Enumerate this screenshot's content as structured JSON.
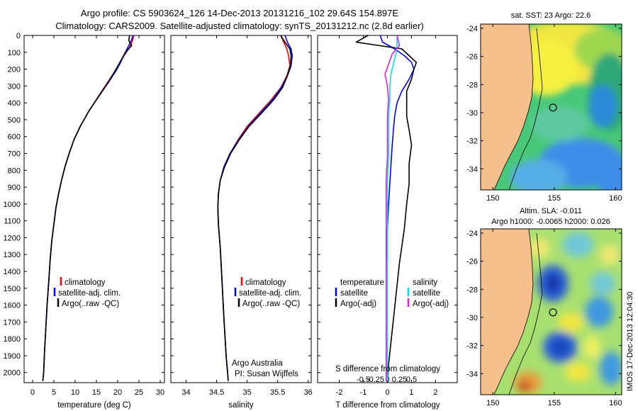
{
  "header": {
    "title_line1": "Argo profile: CS 5903624_126 14-Dec-2013 20131216_102 29.64S 154.897E",
    "title_line2": "Climatology: CARS2009. Satellite-adjusted climatology: synTS_20131212.nc (2.8d earlier)"
  },
  "colors": {
    "climatology": "#ff0000",
    "satellite": "#0000ff",
    "argo": "#000000",
    "s_satellite": "#00e5e5",
    "s_argo": "#e020e0",
    "land": "#f5c08c"
  },
  "chart_data": [
    {
      "id": "temperature",
      "type": "line",
      "xlabel": "temperature (deg C)",
      "xlim": [
        -2,
        31
      ],
      "xticks": [
        0,
        5,
        10,
        15,
        20,
        25,
        30
      ],
      "ylim": [
        2060,
        0
      ],
      "yticks": [
        0,
        100,
        200,
        300,
        400,
        500,
        600,
        700,
        800,
        900,
        1000,
        1100,
        1200,
        1300,
        1400,
        1500,
        1600,
        1700,
        1800,
        1900,
        2000
      ],
      "legend": [
        "climatology",
        "satellite-adj. clim.",
        "Argo(..raw -QC)"
      ],
      "series": [
        {
          "name": "climatology",
          "color": "#ff0000",
          "x": [
            23.8,
            23.5,
            23.0,
            22.3,
            21.5,
            20.6,
            19.4,
            17.6,
            15.5,
            13.2,
            11.2,
            9.7,
            8.6,
            7.6,
            6.8,
            6.1,
            5.5,
            5.0,
            4.5,
            4.1,
            3.8,
            3.4,
            3.1,
            2.8,
            2.6,
            2.4
          ],
          "depth": [
            0,
            30,
            60,
            90,
            120,
            160,
            210,
            280,
            360,
            450,
            540,
            620,
            700,
            780,
            860,
            940,
            1020,
            1120,
            1220,
            1340,
            1460,
            1600,
            1740,
            1880,
            2000,
            2050
          ]
        },
        {
          "name": "satellite-adj. clim.",
          "color": "#0000ff",
          "x": [
            23.6,
            23.2,
            22.6,
            22.0,
            21.4,
            20.7,
            19.6,
            17.8,
            15.6,
            13.2,
            11.2,
            9.7,
            8.6,
            7.6,
            6.8,
            6.1,
            5.5,
            5.0,
            4.5,
            4.1,
            3.8,
            3.4,
            3.1,
            2.8,
            2.6,
            2.4
          ],
          "depth": [
            0,
            30,
            60,
            90,
            120,
            160,
            210,
            280,
            360,
            450,
            540,
            620,
            700,
            780,
            860,
            940,
            1020,
            1120,
            1220,
            1340,
            1460,
            1600,
            1740,
            1880,
            2000,
            2050
          ]
        },
        {
          "name": "Argo(..raw -QC)",
          "color": "#000000",
          "x": [
            22.8,
            22.6,
            23.3,
            22.2,
            21.4,
            20.5,
            19.4,
            17.7,
            15.6,
            13.2,
            11.2,
            9.7,
            8.6,
            7.6,
            6.8,
            6.1,
            5.5,
            5.0,
            4.5,
            4.1,
            3.8,
            3.4,
            3.1,
            2.8,
            2.6,
            2.4
          ],
          "depth": [
            0,
            30,
            60,
            90,
            120,
            160,
            210,
            280,
            360,
            450,
            540,
            620,
            700,
            780,
            860,
            940,
            1020,
            1120,
            1220,
            1340,
            1460,
            1600,
            1740,
            1880,
            2000,
            2050
          ]
        }
      ]
    },
    {
      "id": "salinity",
      "type": "line",
      "xlabel": "salinity",
      "xlim": [
        33.75,
        36.05
      ],
      "xticks": [
        34,
        34.5,
        35,
        35.5,
        36
      ],
      "ylim": [
        2060,
        0
      ],
      "legend": [
        "climatology",
        "satellite-adj. clim.",
        "Argo(..raw -QC)"
      ],
      "annotation": [
        "Argo Australia",
        "PI: Susan Wijffels"
      ],
      "series": [
        {
          "name": "climatology",
          "color": "#ff0000",
          "x": [
            35.55,
            35.6,
            35.65,
            35.68,
            35.7,
            35.65,
            35.55,
            35.4,
            35.2,
            35.0,
            34.85,
            34.72,
            34.62,
            34.56,
            34.53,
            34.52,
            34.53,
            34.56,
            34.58,
            34.6,
            34.62,
            34.64,
            34.66,
            34.68,
            34.69
          ],
          "depth": [
            0,
            40,
            80,
            120,
            180,
            240,
            310,
            380,
            460,
            540,
            620,
            700,
            780,
            860,
            940,
            1020,
            1120,
            1260,
            1400,
            1540,
            1680,
            1800,
            1920,
            2000,
            2050
          ]
        },
        {
          "name": "satellite-adj. clim.",
          "color": "#0000ff",
          "x": [
            35.62,
            35.66,
            35.72,
            35.74,
            35.72,
            35.66,
            35.56,
            35.42,
            35.22,
            35.02,
            34.86,
            34.72,
            34.62,
            34.56,
            34.53,
            34.52,
            34.53,
            34.56,
            34.58,
            34.6,
            34.62,
            34.64,
            34.66,
            34.68,
            34.69
          ],
          "depth": [
            0,
            40,
            80,
            120,
            180,
            240,
            310,
            380,
            460,
            540,
            620,
            700,
            780,
            860,
            940,
            1020,
            1120,
            1260,
            1400,
            1540,
            1680,
            1800,
            1920,
            2000,
            2050
          ]
        },
        {
          "name": "Argo(..raw -QC)",
          "color": "#000000",
          "x": [
            35.55,
            35.62,
            35.7,
            35.72,
            35.71,
            35.66,
            35.58,
            35.44,
            35.24,
            35.03,
            34.87,
            34.73,
            34.63,
            34.56,
            34.53,
            34.52,
            34.53,
            34.56,
            34.58,
            34.6,
            34.62,
            34.64,
            34.66,
            34.68,
            34.69
          ],
          "depth": [
            0,
            40,
            80,
            120,
            180,
            240,
            310,
            380,
            460,
            540,
            620,
            700,
            780,
            860,
            940,
            1020,
            1120,
            1260,
            1400,
            1540,
            1680,
            1800,
            1920,
            2000,
            2050
          ]
        }
      ]
    },
    {
      "id": "difference",
      "type": "line",
      "xlabel": "T difference from climatology",
      "xlim": [
        -2.9,
        2.9
      ],
      "xticks": [
        -2,
        -1,
        0,
        1,
        2
      ],
      "x2label": "S difference from climatology",
      "x2ticks": [
        "-0.5",
        "-0.25",
        "0",
        "0.25",
        "0.5"
      ],
      "ylim": [
        2060,
        0
      ],
      "legend_temperature_title": "temperature",
      "legend_salinity_title": "salinity",
      "legend": [
        "satellite",
        "Argo(-adj)",
        "satellite",
        "Argo(-adj)"
      ],
      "series": [
        {
          "name": "satellite",
          "color": "#0000ff",
          "x": [
            -0.3,
            -0.2,
            0.3,
            0.7,
            1.0,
            1.1,
            0.9,
            0.6,
            0.4,
            0.3,
            0.25,
            0.2,
            0.15,
            0.1,
            0.05,
            0.0,
            -0.05,
            -0.05,
            -0.05,
            -0.05,
            -0.05
          ],
          "depth": [
            0,
            40,
            80,
            120,
            160,
            200,
            260,
            330,
            400,
            480,
            560,
            650,
            760,
            880,
            1000,
            1150,
            1350,
            1550,
            1750,
            1950,
            2050
          ]
        },
        {
          "name": "Argo(-adj)",
          "color": "#000000",
          "x": [
            -0.8,
            -1.3,
            0.6,
            0.9,
            1.2,
            1.1,
            1.0,
            0.8,
            0.8,
            0.8,
            0.9,
            1.0,
            0.9,
            0.9,
            0.8,
            0.7,
            0.5,
            0.35,
            0.2,
            0.05,
            0.0
          ],
          "depth": [
            0,
            40,
            80,
            120,
            160,
            200,
            260,
            330,
            400,
            480,
            560,
            650,
            760,
            880,
            1000,
            1150,
            1350,
            1550,
            1750,
            1950,
            2050
          ]
        },
        {
          "name": "satellite",
          "color": "#00e5e5",
          "x": [
            0.4,
            0.4,
            0.35,
            0.25,
            0.15,
            0.1,
            0.1,
            0.05,
            0.05,
            0.05,
            0.0,
            0.0,
            0.0,
            0.0,
            0.0,
            0.0,
            0.0
          ],
          "depth": [
            0,
            60,
            110,
            170,
            230,
            300,
            380,
            480,
            600,
            720,
            860,
            1000,
            1200,
            1400,
            1600,
            1800,
            2050
          ]
        },
        {
          "name": "Argo(-adj)",
          "color": "#e020e0",
          "x": [
            0.4,
            0.5,
            0.2,
            0.05,
            -0.1,
            0.0,
            0.05,
            0.0,
            0.0,
            0.0,
            -0.05,
            -0.05,
            -0.05,
            -0.05,
            -0.05,
            -0.05,
            -0.05
          ],
          "depth": [
            0,
            60,
            110,
            170,
            230,
            300,
            380,
            480,
            600,
            720,
            860,
            1000,
            1200,
            1400,
            1600,
            1800,
            2050
          ]
        }
      ]
    },
    {
      "id": "sst-map",
      "type": "heatmap",
      "title": "sat. SST: 23 Argo: 22.6",
      "xlim": [
        149,
        160.5
      ],
      "ylim": [
        -35.5,
        -23.7
      ],
      "xticks": [
        150,
        155,
        160
      ],
      "yticks": [
        -24,
        -26,
        -28,
        -30,
        -32,
        -34
      ],
      "marker": {
        "lon": 154.9,
        "lat": -29.64
      }
    },
    {
      "id": "sla-map",
      "type": "heatmap",
      "title_line1": "Altim. SLA: -0.011",
      "title_line2": "Argo h1000: -0.0065 h2000: 0.026",
      "xlim": [
        149,
        160.5
      ],
      "ylim": [
        -35.5,
        -23.7
      ],
      "xticks": [
        150,
        155,
        160
      ],
      "yticks": [
        -24,
        -26,
        -28,
        -30,
        -32,
        -34
      ],
      "marker": {
        "lon": 154.9,
        "lat": -29.64
      }
    }
  ],
  "timestamp": "IMOS 17-Dec-2013 12:04:30"
}
